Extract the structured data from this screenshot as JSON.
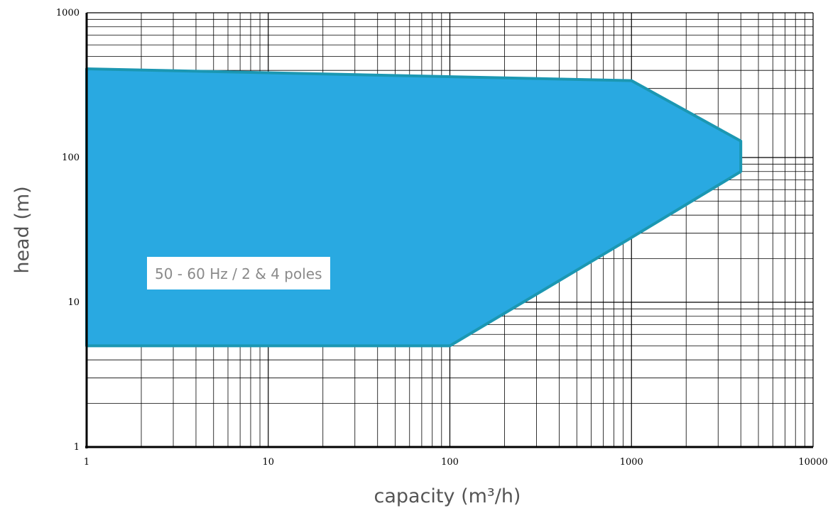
{
  "chart_data": {
    "type": "area",
    "title": "",
    "xlabel": "capacity (m³/h)",
    "ylabel": "head (m)",
    "xscale": "log",
    "yscale": "log",
    "xlim": [
      1,
      10000
    ],
    "ylim": [
      1,
      1000
    ],
    "x_ticks": [
      "1",
      "10",
      "100",
      "1000",
      "10000"
    ],
    "y_ticks": [
      "1",
      "10",
      "100",
      "1000"
    ],
    "grid": true,
    "series": [
      {
        "points": [
          {
            "x": 1,
            "y": 5
          },
          {
            "x": 100,
            "y": 5
          },
          {
            "x": 1000,
            "y": 28
          },
          {
            "x": 4000,
            "y": 80
          },
          {
            "x": 4000,
            "y": 130
          },
          {
            "x": 1000,
            "y": 340
          },
          {
            "x": 1,
            "y": 410
          }
        ],
        "fill": "#29a9e1",
        "stroke": "#1b97b2"
      }
    ],
    "annotations": [
      {
        "text": "50 - 60 Hz  /  2 & 4 poles"
      }
    ]
  }
}
